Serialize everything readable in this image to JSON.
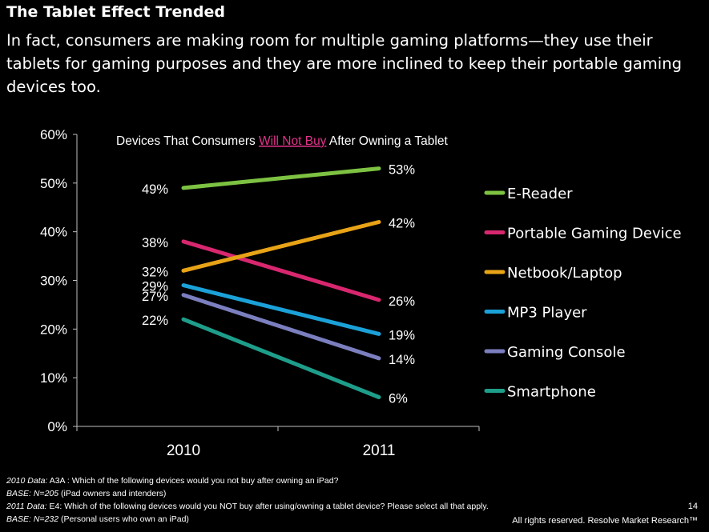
{
  "slide": {
    "title": "The Tablet Effect Trended",
    "subtitle": "In fact, consumers are making room for multiple gaming platforms—they use their tablets for gaming purposes and they are more inclined to keep their portable gaming devices too."
  },
  "chart_data": {
    "type": "line",
    "title_pre": "Devices That Consumers ",
    "title_highlight": "Will Not Buy",
    "title_post": " After Owning a Tablet",
    "highlight_color": "#E0338A",
    "x": [
      "2010",
      "2011"
    ],
    "ylim": [
      0,
      60
    ],
    "yticks": [
      "0%",
      "10%",
      "20%",
      "30%",
      "40%",
      "50%",
      "60%"
    ],
    "grid": false,
    "legend_position": "right",
    "series": [
      {
        "name": "E-Reader",
        "values": [
          49,
          53
        ],
        "labels": [
          "49%",
          "53%"
        ],
        "color": "#7DC242"
      },
      {
        "name": "Portable Gaming Device",
        "values": [
          38,
          26
        ],
        "labels": [
          "38%",
          "26%"
        ],
        "color": "#D8276F"
      },
      {
        "name": "Netbook/Laptop",
        "values": [
          32,
          42
        ],
        "labels": [
          "32%",
          "42%"
        ],
        "color": "#E8A317"
      },
      {
        "name": "MP3 Player",
        "values": [
          29,
          19
        ],
        "labels": [
          "29%",
          "19%"
        ],
        "color": "#1BA1D8"
      },
      {
        "name": "Gaming Console",
        "values": [
          27,
          14
        ],
        "labels": [
          "27%",
          "14%"
        ],
        "color": "#7B7FBF"
      },
      {
        "name": "Smartphone",
        "values": [
          22,
          6
        ],
        "labels": [
          "22%",
          "6%"
        ],
        "color": "#1E9E8A"
      }
    ]
  },
  "footer": {
    "line1_label": "2010 Data:",
    "line1_text": " A3A :  Which of the following devices would you not buy after owning an iPad?",
    "line2_label": "BASE: N=205",
    "line2_text": " (iPad owners and intenders)",
    "line3_label": "2011 Data:",
    "line3_text": " E4: Which of the following devices would you NOT buy after using/owning a tablet device? Please select all that apply.",
    "line4_label": "BASE: N=232",
    "line4_text": " (Personal users who own an iPad)",
    "page_number": "14",
    "copyright": "All rights reserved. Resolve Market Research™"
  }
}
